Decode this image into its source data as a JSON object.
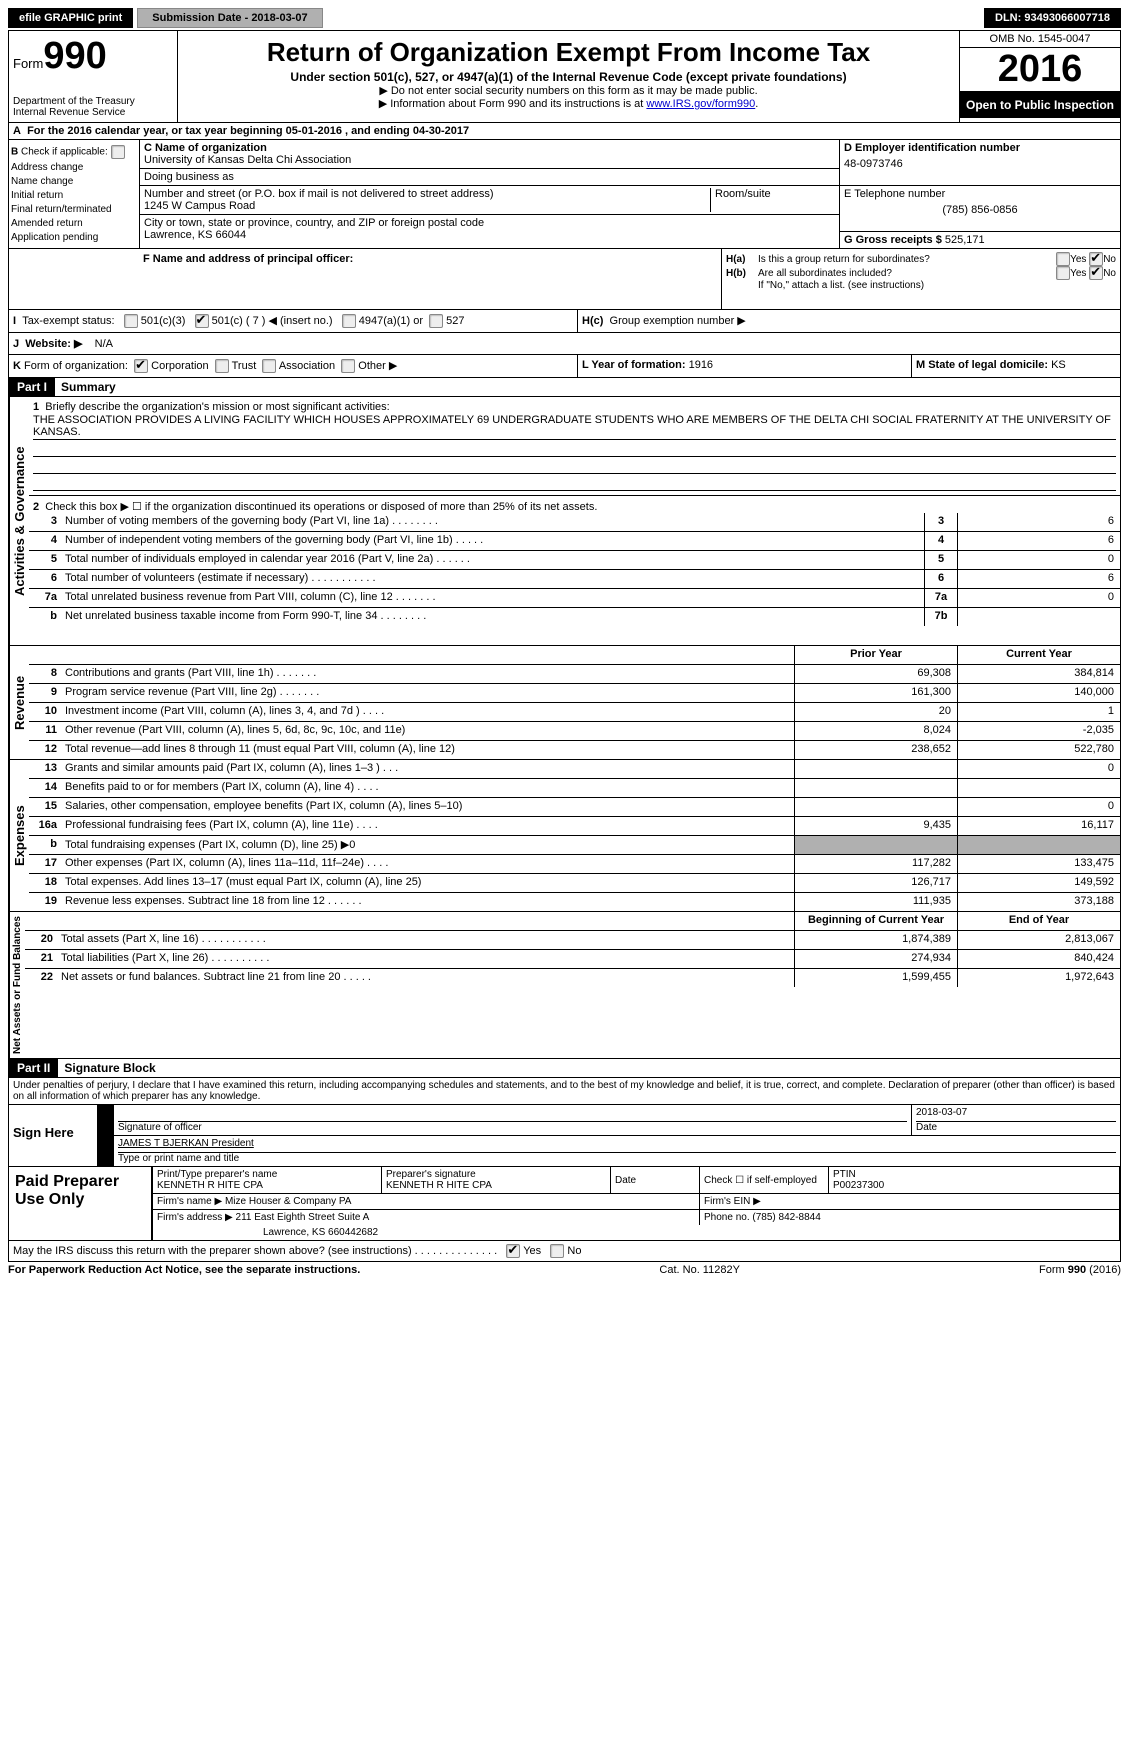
{
  "topbar": {
    "efile": "efile GRAPHIC print",
    "submission": "Submission Date - 2018-03-07",
    "dln": "DLN: 93493066007718"
  },
  "header": {
    "form_label": "Form",
    "form_num": "990",
    "dept": "Department of the Treasury",
    "irs": "Internal Revenue Service",
    "title": "Return of Organization Exempt From Income Tax",
    "subtitle": "Under section 501(c), 527, or 4947(a)(1) of the Internal Revenue Code (except private foundations)",
    "note1": "▶ Do not enter social security numbers on this form as it may be made public.",
    "note2_pre": "▶ Information about Form 990 and its instructions is at ",
    "note2_link": "www.IRS.gov/form990",
    "omb": "OMB No. 1545-0047",
    "year": "2016",
    "open": "Open to Public Inspection"
  },
  "rowA": "For the 2016 calendar year, or tax year beginning 05-01-2016     , and ending 04-30-2017",
  "boxB": {
    "title": "Check if applicable:",
    "items": [
      "Address change",
      "Name change",
      "Initial return",
      "Final return/terminated",
      "Amended return",
      "Application pending"
    ]
  },
  "boxC": {
    "label": "C Name of organization",
    "name": "University of Kansas Delta Chi Association",
    "dba_label": "Doing business as",
    "street_label": "Number and street (or P.O. box if mail is not delivered to street address)",
    "room_label": "Room/suite",
    "street": "1245 W Campus Road",
    "city_label": "City or town, state or province, country, and ZIP or foreign postal code",
    "city": "Lawrence, KS  66044"
  },
  "boxD": {
    "label": "D Employer identification number",
    "value": "48-0973746"
  },
  "boxE": {
    "label": "E Telephone number",
    "value": "(785) 856-0856"
  },
  "boxG": {
    "label": "G Gross receipts $",
    "value": "525,171"
  },
  "boxF": "F  Name and address of principal officer:",
  "boxH": {
    "a": "Is this a group return for subordinates?",
    "b": "Are all subordinates included?",
    "b_note": "If \"No,\" attach a list. (see instructions)",
    "c": "Group exemption number ▶"
  },
  "boxI": "Tax-exempt status:",
  "boxI_opts": [
    "501(c)(3)",
    "501(c) ( 7 ) ◀ (insert no.)",
    "4947(a)(1) or",
    "527"
  ],
  "boxJ": {
    "label": "Website: ▶",
    "value": "N/A"
  },
  "boxK": "Form of organization:",
  "boxK_opts": [
    "Corporation",
    "Trust",
    "Association",
    "Other ▶"
  ],
  "boxL": {
    "label": "L Year of formation:",
    "value": "1916"
  },
  "boxM": {
    "label": "M State of legal domicile:",
    "value": "KS"
  },
  "part1": {
    "header": "Part I",
    "title": "Summary",
    "q1": "Briefly describe the organization's mission or most significant activities:",
    "mission": "THE ASSOCIATION PROVIDES A LIVING FACILITY WHICH HOUSES APPROXIMATELY 69 UNDERGRADUATE STUDENTS WHO ARE MEMBERS OF THE DELTA CHI SOCIAL FRATERNITY AT THE UNIVERSITY OF KANSAS.",
    "q2": "Check this box ▶ ☐  if the organization discontinued its operations or disposed of more than 25% of its net assets.",
    "lines_gov": [
      {
        "n": "3",
        "d": "Number of voting members of the governing body (Part VI, line 1a)   .    .    .    .    .    .    .    .",
        "box": "3",
        "v": "6"
      },
      {
        "n": "4",
        "d": "Number of independent voting members of the governing body (Part VI, line 1b)   .    .    .    .    .",
        "box": "4",
        "v": "6"
      },
      {
        "n": "5",
        "d": "Total number of individuals employed in calendar year 2016 (Part V, line 2a)   .    .    .    .    .    .",
        "box": "5",
        "v": "0"
      },
      {
        "n": "6",
        "d": "Total number of volunteers (estimate if necessary)   .    .    .    .    .    .    .    .    .    .    .",
        "box": "6",
        "v": "6"
      },
      {
        "n": "7a",
        "d": "Total unrelated business revenue from Part VIII, column (C), line 12   .    .    .    .    .    .    .",
        "box": "7a",
        "v": "0"
      },
      {
        "n": "b",
        "d": "Net unrelated business taxable income from Form 990-T, line 34   .    .    .    .    .    .    .    .",
        "box": "7b",
        "v": ""
      }
    ],
    "col_prior": "Prior Year",
    "col_current": "Current Year",
    "lines_rev": [
      {
        "n": "8",
        "d": "Contributions and grants (Part VIII, line 1h)   .    .    .    .    .    .    .",
        "p": "69,308",
        "c": "384,814"
      },
      {
        "n": "9",
        "d": "Program service revenue (Part VIII, line 2g)   .    .    .    .    .    .    .",
        "p": "161,300",
        "c": "140,000"
      },
      {
        "n": "10",
        "d": "Investment income (Part VIII, column (A), lines 3, 4, and 7d )   .    .    .    .",
        "p": "20",
        "c": "1"
      },
      {
        "n": "11",
        "d": "Other revenue (Part VIII, column (A), lines 5, 6d, 8c, 9c, 10c, and 11e)",
        "p": "8,024",
        "c": "-2,035"
      },
      {
        "n": "12",
        "d": "Total revenue—add lines 8 through 11 (must equal Part VIII, column (A), line 12)",
        "p": "238,652",
        "c": "522,780"
      }
    ],
    "lines_exp": [
      {
        "n": "13",
        "d": "Grants and similar amounts paid (Part IX, column (A), lines 1–3 )   .    .    .",
        "p": "",
        "c": "0"
      },
      {
        "n": "14",
        "d": "Benefits paid to or for members (Part IX, column (A), line 4)   .    .    .    .",
        "p": "",
        "c": ""
      },
      {
        "n": "15",
        "d": "Salaries, other compensation, employee benefits (Part IX, column (A), lines 5–10)",
        "p": "",
        "c": "0"
      },
      {
        "n": "16a",
        "d": "Professional fundraising fees (Part IX, column (A), line 11e)   .    .    .    .",
        "p": "9,435",
        "c": "16,117"
      },
      {
        "n": "b",
        "d": "Total fundraising expenses (Part IX, column (D), line 25) ▶0",
        "p": "SHADED",
        "c": "SHADED"
      },
      {
        "n": "17",
        "d": "Other expenses (Part IX, column (A), lines 11a–11d, 11f–24e)   .    .    .    .",
        "p": "117,282",
        "c": "133,475"
      },
      {
        "n": "18",
        "d": "Total expenses. Add lines 13–17 (must equal Part IX, column (A), line 25)",
        "p": "126,717",
        "c": "149,592"
      },
      {
        "n": "19",
        "d": "Revenue less expenses. Subtract line 18 from line 12   .    .    .    .    .    .",
        "p": "111,935",
        "c": "373,188"
      }
    ],
    "col_begin": "Beginning of Current Year",
    "col_end": "End of Year",
    "lines_net": [
      {
        "n": "20",
        "d": "Total assets (Part X, line 16)   .    .    .    .    .    .    .    .    .    .    .",
        "p": "1,874,389",
        "c": "2,813,067"
      },
      {
        "n": "21",
        "d": "Total liabilities (Part X, line 26)   .    .    .    .    .    .    .    .    .    .",
        "p": "274,934",
        "c": "840,424"
      },
      {
        "n": "22",
        "d": "Net assets or fund balances. Subtract line 21 from line 20   .    .    .    .    .",
        "p": "1,599,455",
        "c": "1,972,643"
      }
    ]
  },
  "part2": {
    "header": "Part II",
    "title": "Signature Block",
    "declaration": "Under penalties of perjury, I declare that I have examined this return, including accompanying schedules and statements, and to the best of my knowledge and belief, it is true, correct, and complete. Declaration of preparer (other than officer) is based on all information of which preparer has any knowledge.",
    "sign_here": "Sign Here",
    "sig_officer": "Signature of officer",
    "sig_date": "Date",
    "sig_date_val": "2018-03-07",
    "officer_name": "JAMES T BJERKAN President",
    "type_name": "Type or print name and title",
    "paid": "Paid Preparer Use Only",
    "prep_name_lbl": "Print/Type preparer's name",
    "prep_name": "KENNETH R HITE CPA",
    "prep_sig_lbl": "Preparer's signature",
    "prep_sig": "KENNETH R HITE CPA",
    "date_lbl": "Date",
    "check_self": "Check ☐ if self-employed",
    "ptin_lbl": "PTIN",
    "ptin": "P00237300",
    "firm_name_lbl": "Firm's name    ▶",
    "firm_name": "Mize Houser & Company PA",
    "firm_ein_lbl": "Firm's EIN ▶",
    "firm_addr_lbl": "Firm's address ▶",
    "firm_addr": "211 East Eighth Street Suite A",
    "firm_addr2": "Lawrence, KS  660442682",
    "phone_lbl": "Phone no.",
    "phone": "(785) 842-8844",
    "discuss": "May the IRS discuss this return with the preparer shown above? (see instructions)   .    .    .    .    .    .    .    .    .    .    .    .    .    ."
  },
  "footer": {
    "left": "For Paperwork Reduction Act Notice, see the separate instructions.",
    "mid": "Cat. No. 11282Y",
    "right": "Form 990 (2016)"
  },
  "labels": {
    "yes": "Yes",
    "no": "No",
    "vert_gov": "Activities & Governance",
    "vert_rev": "Revenue",
    "vert_exp": "Expenses",
    "vert_net": "Net Assets or Fund Balances"
  }
}
